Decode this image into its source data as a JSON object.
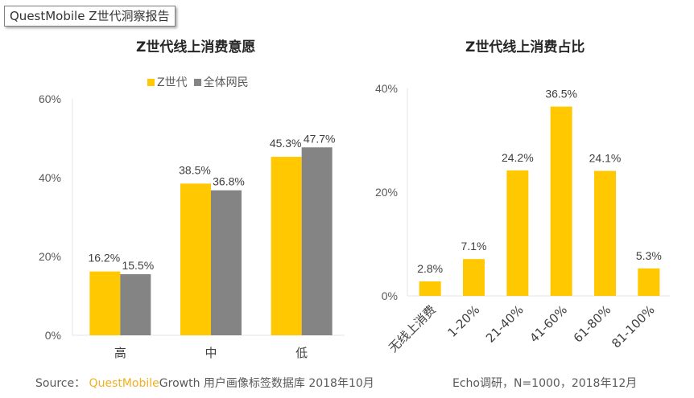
{
  "report_tag": "QuestMobile Z世代洞察报告",
  "colors": {
    "z_gen": "#FFC800",
    "all_users": "#848484",
    "axis": "#e6e6e6"
  },
  "chart_data": [
    {
      "type": "bar",
      "title": "Z世代线上消费意愿",
      "categories": [
        "高",
        "中",
        "低"
      ],
      "series": [
        {
          "name": "Z世代",
          "values": [
            16.2,
            38.5,
            45.3
          ],
          "labels": [
            "16.2%",
            "38.5%",
            "45.3%"
          ]
        },
        {
          "name": "全体网民",
          "values": [
            15.5,
            36.8,
            47.7
          ],
          "labels": [
            "15.5%",
            "36.8%",
            "47.7%"
          ]
        }
      ],
      "ylim": [
        0,
        60
      ],
      "yticks": [
        0,
        20,
        40,
        60
      ],
      "ytick_labels": [
        "0%",
        "20%",
        "40%",
        "60%"
      ],
      "xlabel": "",
      "ylabel": "",
      "legend": "top-center",
      "grid": false
    },
    {
      "type": "bar",
      "title": "Z世代线上消费占比",
      "categories": [
        "无线上消费",
        "1-20%",
        "21-40%",
        "41-60%",
        "61-80%",
        "81-100%"
      ],
      "values": [
        2.8,
        7.1,
        24.2,
        36.5,
        24.1,
        5.3
      ],
      "labels": [
        "2.8%",
        "7.1%",
        "24.2%",
        "36.5%",
        "24.1%",
        "5.3%"
      ],
      "ylim": [
        0,
        40
      ],
      "yticks": [
        0,
        20,
        40
      ],
      "ytick_labels": [
        "0%",
        "20%",
        "40%"
      ],
      "xlabel": "",
      "ylabel": "",
      "grid": false
    }
  ],
  "source_left": {
    "prefix": "Source：",
    "brand": "QuestMobile",
    "rest": "Growth 用户画像标签数据库 2018年10月"
  },
  "source_right": "Echo调研，N=1000，2018年12月"
}
